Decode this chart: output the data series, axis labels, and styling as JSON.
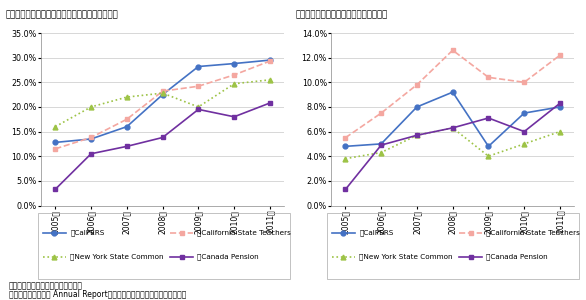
{
  "years": [
    "2005年",
    "2006年",
    "2007年",
    "2008年",
    "2009年",
    "2010年",
    "2011年"
  ],
  "chart1": {
    "title": "図表２　北米年金の伝統資産以外の実績配分比率",
    "ylim": [
      0.0,
      0.35
    ],
    "yticks": [
      0.0,
      0.05,
      0.1,
      0.15,
      0.2,
      0.25,
      0.3,
      0.35
    ],
    "calpers": [
      0.128,
      0.135,
      0.16,
      0.225,
      0.282,
      0.288,
      0.295
    ],
    "california": [
      0.115,
      0.138,
      0.175,
      0.232,
      0.242,
      0.265,
      0.293
    ],
    "newyork": [
      0.16,
      0.2,
      0.22,
      0.228,
      0.2,
      0.247,
      0.255
    ],
    "canada": [
      0.033,
      0.105,
      0.12,
      0.138,
      0.195,
      0.18,
      0.208
    ]
  },
  "chart2": {
    "title": "図表３　北米年金の不動産実績配分比率",
    "ylim": [
      0.0,
      0.14
    ],
    "yticks": [
      0.0,
      0.02,
      0.04,
      0.06,
      0.08,
      0.1,
      0.12,
      0.14
    ],
    "calpers": [
      0.048,
      0.05,
      0.08,
      0.092,
      0.048,
      0.075,
      0.08
    ],
    "california": [
      0.055,
      0.075,
      0.098,
      0.126,
      0.104,
      0.1,
      0.122
    ],
    "newyork": [
      0.038,
      0.043,
      0.057,
      0.063,
      0.04,
      0.05,
      0.06
    ],
    "canada": [
      0.013,
      0.049,
      0.057,
      0.063,
      0.071,
      0.06,
      0.083
    ]
  },
  "legend": {
    "calpers_label": "米CalPERS",
    "california_label": "米California State Teachers",
    "newyork_label": "米New York State Common",
    "canada_label": "加Canada Pension"
  },
  "colors": {
    "calpers": "#4472C4",
    "california": "#F4A7A0",
    "newyork": "#9DC346",
    "canada": "#7030A0"
  },
  "note1": "注）伝統資産：国内外の株式、債券",
  "note2": "出所）各年金基金の Annual Reportより三井住友トラスト基礎研究所作成",
  "background_color": "#ffffff",
  "grid_color": "#c8c8c8"
}
